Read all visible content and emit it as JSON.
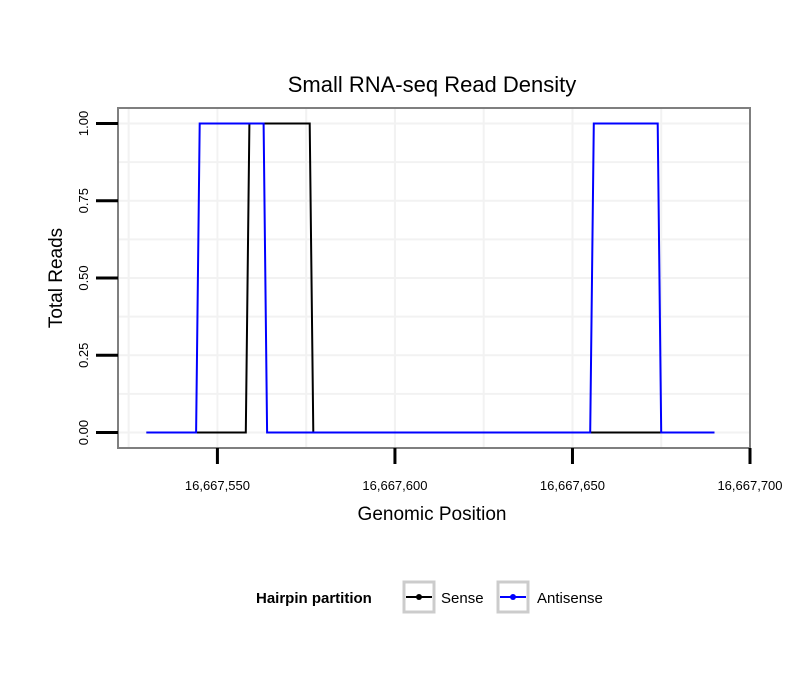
{
  "chart_data": {
    "type": "line",
    "title": "Small RNA-seq Read Density",
    "xlabel": "Genomic Position",
    "ylabel": "Total Reads",
    "xlim": [
      16667522,
      16667700
    ],
    "ylim": [
      -0.05,
      1.05
    ],
    "x_ticks": [
      16667550,
      16667600,
      16667650,
      16667700
    ],
    "x_tick_labels": [
      "16,667,550",
      "16,667,600",
      "16,667,650",
      "16,667,700"
    ],
    "y_ticks": [
      0,
      0.25,
      0.5,
      0.75,
      1.0
    ],
    "y_tick_labels": [
      "0.00",
      "0.25",
      "0.50",
      "0.75",
      "1.00"
    ],
    "grid": true,
    "legend": {
      "title": "Hairpin partition",
      "position": "bottom",
      "entries": [
        "Sense",
        "Antisense"
      ]
    },
    "series": [
      {
        "name": "Sense",
        "color": "#000000",
        "x": [
          16667530,
          16667558,
          16667559,
          16667576,
          16667577,
          16667690
        ],
        "y": [
          0,
          0,
          1,
          1,
          0,
          0
        ]
      },
      {
        "name": "Antisense",
        "color": "#0000ff",
        "x": [
          16667530,
          16667544,
          16667545,
          16667563,
          16667564,
          16667655,
          16667656,
          16667674,
          16667675,
          16667690
        ],
        "y": [
          0,
          0,
          1,
          1,
          0,
          0,
          1,
          1,
          0,
          0
        ]
      }
    ]
  }
}
